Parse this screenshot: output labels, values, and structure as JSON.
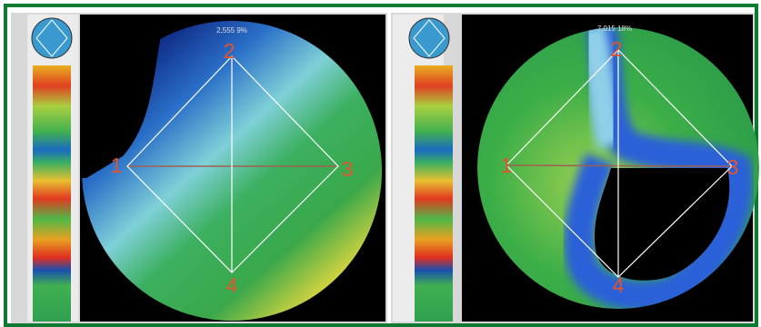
{
  "panels": [
    {
      "value_label": "2,555  9%",
      "points": [
        "1",
        "2",
        "3",
        "4"
      ]
    },
    {
      "value_label": "7,015  18%",
      "points": [
        "1",
        "2",
        "3",
        "4"
      ]
    }
  ]
}
